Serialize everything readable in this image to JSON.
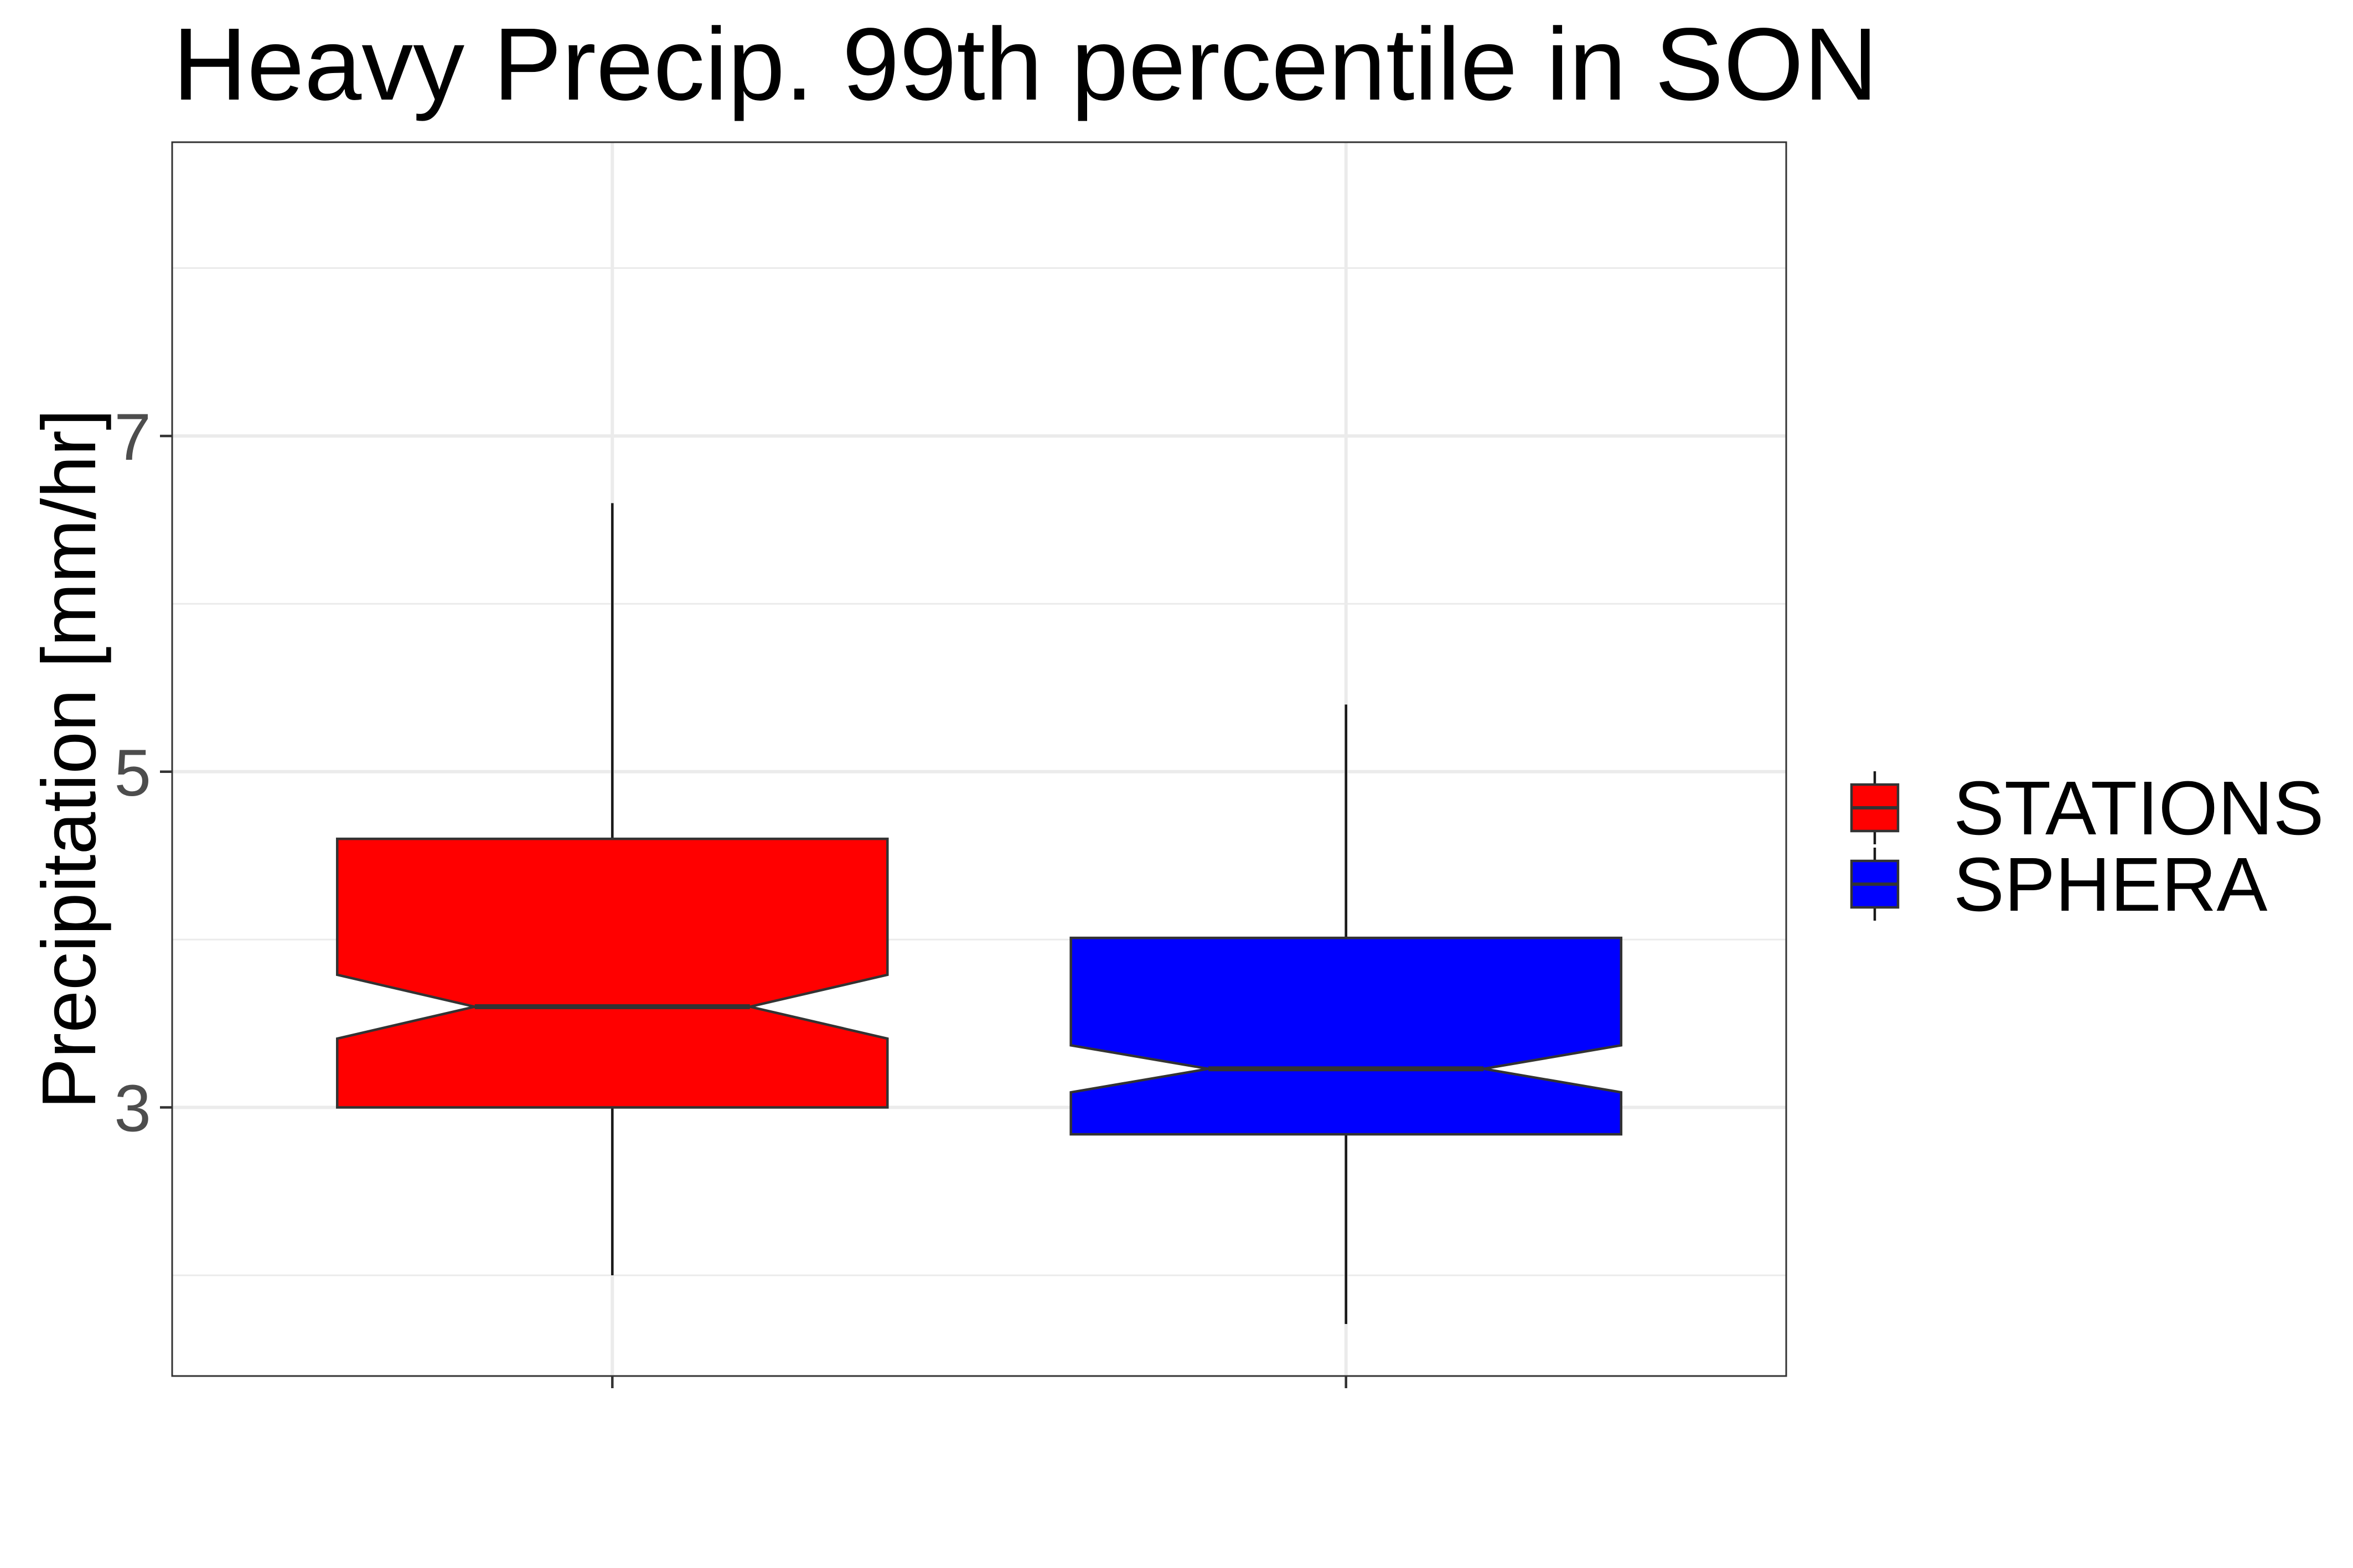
{
  "chart_data": {
    "type": "box",
    "title": "Heavy Precip. 99th percentile in SON",
    "xlabel": "",
    "ylabel": "Precipitation [mm/hr]",
    "ylim": [
      1.4,
      8.75
    ],
    "yticks": [
      3,
      5,
      7
    ],
    "minor_gridlines_y": [
      2,
      4,
      6,
      8
    ],
    "grid": true,
    "notched": true,
    "legend_position": "right",
    "series": [
      {
        "name": "STATIONS",
        "color": "#ff0000",
        "whisker_low": 2.0,
        "q1": 3.0,
        "median": 3.6,
        "q3": 4.6,
        "whisker_high": 6.6,
        "notch_low": 3.41,
        "notch_high": 3.79
      },
      {
        "name": "SPHERA",
        "color": "#0000ff",
        "whisker_low": 1.71,
        "q1": 2.84,
        "median": 3.23,
        "q3": 4.01,
        "whisker_high": 5.4,
        "notch_low": 3.09,
        "notch_high": 3.37
      }
    ]
  },
  "colors": {
    "panel_border": "#333333",
    "grid": "#ebebeb",
    "box_outline": "#333333",
    "whisker": "#1a1a1a"
  }
}
